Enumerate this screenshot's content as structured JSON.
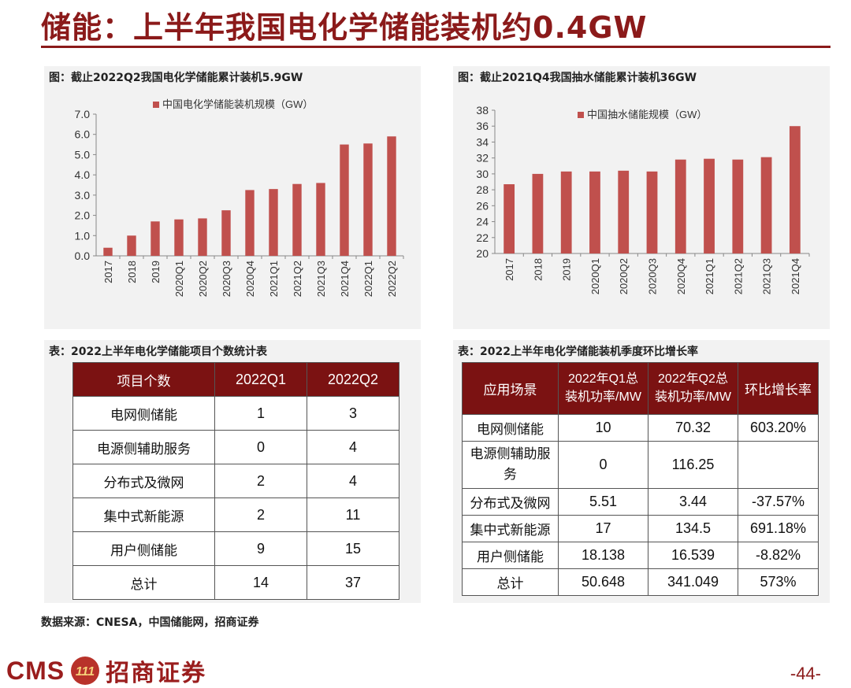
{
  "title": "储能：上半年我国电化学储能装机约0.4GW",
  "chart1": {
    "caption": "图：截止2022Q2我国电化学储能累计装机5.9GW",
    "legend": "中国电化学储能装机规模（GW）",
    "ytick_labels": [
      "0.0",
      "1.0",
      "2.0",
      "3.0",
      "4.0",
      "5.0",
      "6.0",
      "7.0"
    ]
  },
  "chart2": {
    "caption": "图：截止2021Q4我国抽水储能累计装机36GW",
    "legend": "中国抽水储能规模（GW）",
    "ytick_labels": [
      "20",
      "22",
      "24",
      "26",
      "28",
      "30",
      "32",
      "34",
      "36",
      "38"
    ]
  },
  "chart_data": [
    {
      "type": "bar",
      "title": "图：截止2022Q2我国电化学储能累计装机5.9GW",
      "categories": [
        "2017",
        "2018",
        "2019",
        "2020Q1",
        "2020Q2",
        "2020Q3",
        "2020Q4",
        "2021Q1",
        "2021Q2",
        "2021Q3",
        "2021Q4",
        "2022Q1",
        "2022Q2"
      ],
      "series": [
        {
          "name": "中国电化学储能装机规模（GW）",
          "values": [
            0.4,
            1.0,
            1.7,
            1.8,
            1.85,
            2.25,
            3.25,
            3.3,
            3.55,
            3.6,
            5.5,
            5.55,
            5.9
          ]
        }
      ],
      "ylim": [
        0,
        7
      ],
      "ytick_step": 1,
      "color": "#c0504d",
      "legend_position": "top-right",
      "grid": false
    },
    {
      "type": "bar",
      "title": "图：截止2021Q4我国抽水储能累计装机36GW",
      "categories": [
        "2017",
        "2018",
        "2019",
        "2020Q1",
        "2020Q2",
        "2020Q3",
        "2020Q4",
        "2021Q1",
        "2021Q2",
        "2021Q3",
        "2021Q4"
      ],
      "series": [
        {
          "name": "中国抽水储能规模（GW）",
          "values": [
            28.7,
            30.0,
            30.3,
            30.3,
            30.4,
            30.3,
            31.8,
            31.9,
            31.8,
            32.1,
            36.0
          ]
        }
      ],
      "ylim": [
        20,
        38
      ],
      "ytick_step": 2,
      "color": "#c0504d",
      "legend_position": "top-right",
      "grid": false
    }
  ],
  "table1": {
    "caption": "表：2022上半年电化学储能项目个数统计表",
    "headers": [
      "项目个数",
      "2022Q1",
      "2022Q2"
    ],
    "rows": [
      [
        "电网侧储能",
        "1",
        "3"
      ],
      [
        "电源侧辅助服务",
        "0",
        "4"
      ],
      [
        "分布式及微网",
        "2",
        "4"
      ],
      [
        "集中式新能源",
        "2",
        "11"
      ],
      [
        "用户侧储能",
        "9",
        "15"
      ],
      [
        "总计",
        "14",
        "37"
      ]
    ]
  },
  "table2": {
    "caption": "表：2022上半年电化学储能装机季度环比增长率",
    "headers": [
      "应用场景",
      "2022年Q1总装机功率/MW",
      "2022年Q2总装机功率/MW",
      "环比增长率"
    ],
    "rows": [
      [
        "电网侧储能",
        "10",
        "70.32",
        "603.20%"
      ],
      [
        "电源侧辅助服务",
        "0",
        "116.25",
        ""
      ],
      [
        "分布式及微网",
        "5.51",
        "3.44",
        "-37.57%"
      ],
      [
        "集中式新能源",
        "17",
        "134.5",
        "691.18%"
      ],
      [
        "用户侧储能",
        "18.138",
        "16.539",
        "-8.82%"
      ],
      [
        "总计",
        "50.648",
        "341.049",
        "573%"
      ]
    ]
  },
  "source": "数据来源：CNESA，中国储能网，招商证券",
  "logo": {
    "latin": "CMS",
    "mark": "111",
    "chinese": "招商证券"
  },
  "page_number": "-44-",
  "colors": {
    "accent": "#8b1a1a",
    "bar": "#c0504d",
    "table_header": "#7b1212",
    "panel": "#f2f2f2"
  }
}
